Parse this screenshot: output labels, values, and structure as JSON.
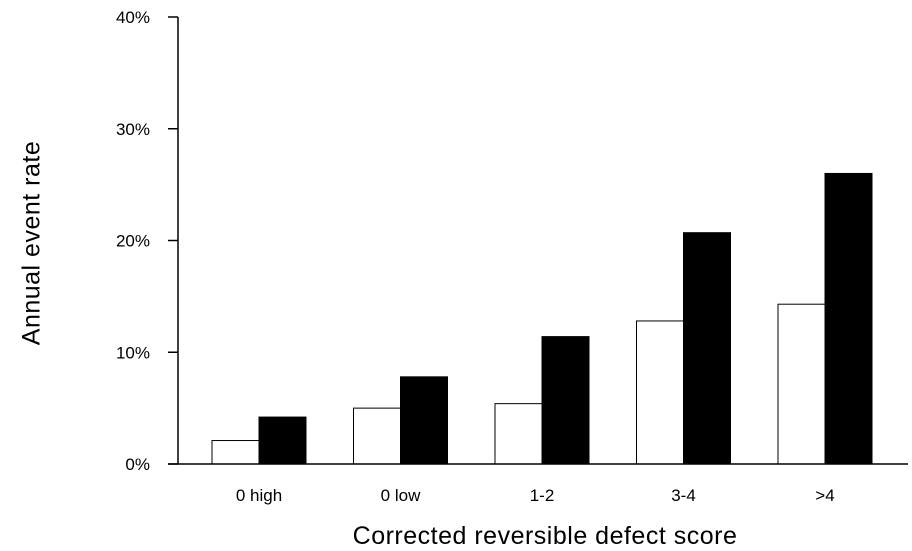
{
  "chart_data": {
    "type": "bar",
    "title": "",
    "xlabel": "Corrected reversible defect score",
    "ylabel": "Annual event rate",
    "categories": [
      "0 high",
      "0 low",
      "1-2",
      "3-4",
      ">4"
    ],
    "series": [
      {
        "fill": "#ffffff",
        "values": [
          2.1,
          5.0,
          5.4,
          12.8,
          14.3
        ]
      },
      {
        "fill": "#000000",
        "values": [
          4.2,
          7.8,
          11.4,
          20.7,
          26.0
        ]
      }
    ],
    "ylim": [
      0,
      40
    ],
    "yticks": [
      0,
      10,
      20,
      30,
      40
    ],
    "ytick_labels": [
      "0%",
      "10%",
      "20%",
      "30%",
      "40%"
    ],
    "grid": false,
    "legend": "none"
  }
}
